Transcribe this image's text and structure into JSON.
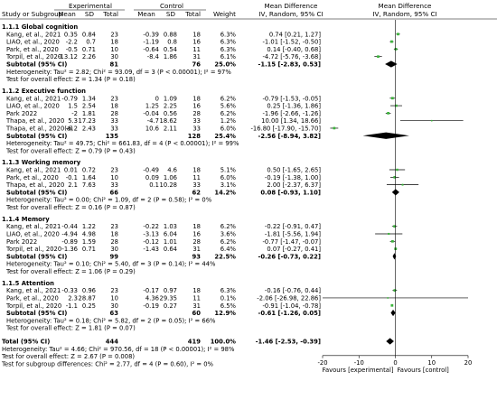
{
  "header": {
    "experimental": "Experimental",
    "control": "Control",
    "md_title": "Mean Difference",
    "md_sub": "IV, Random, 95% CI",
    "plot_title": "Mean Difference",
    "plot_sub": "IV, Random, 95% CI",
    "columns": [
      "Study or Subgroup",
      "Mean",
      "SD",
      "Total",
      "Mean",
      "SD",
      "Total",
      "Weight"
    ]
  },
  "chart_data": {
    "type": "forest",
    "xlim": [
      -20,
      20
    ],
    "ticks": [
      -20,
      -10,
      0,
      10,
      20
    ],
    "favours_left": "Favours [experimental]",
    "favours_right": "Favours [control]",
    "subgroups": [
      {
        "title": "1.1.1 Global cognition",
        "studies": [
          {
            "name": "Kang, et al., 2021",
            "e_mean": "0.35",
            "e_sd": "0.84",
            "e_n": "23",
            "c_mean": "-0.39",
            "c_sd": "0.88",
            "c_n": "18",
            "weight": "6.3%",
            "ci_text": "0.74 [0.21, 1.27]",
            "md": 0.74,
            "lo": 0.21,
            "hi": 1.27
          },
          {
            "name": "LIAO, et al., 2020",
            "e_mean": "-2.2",
            "e_sd": "0.7",
            "e_n": "18",
            "c_mean": "-1.19",
            "c_sd": "0.8",
            "c_n": "16",
            "weight": "6.3%",
            "ci_text": "-1.01 [-1.52, -0.50]",
            "md": -1.01,
            "lo": -1.52,
            "hi": -0.5
          },
          {
            "name": "Park, et al., 2020",
            "e_mean": "-0.5",
            "e_sd": "0.71",
            "e_n": "10",
            "c_mean": "-0.64",
            "c_sd": "0.54",
            "c_n": "11",
            "weight": "6.3%",
            "ci_text": "0.14 [-0.40, 0.68]",
            "md": 0.14,
            "lo": -0.4,
            "hi": 0.68
          },
          {
            "name": "Torpil, et al., 2020",
            "e_mean": "-13.12",
            "e_sd": "2.26",
            "e_n": "30",
            "c_mean": "-8.4",
            "c_sd": "1.86",
            "c_n": "31",
            "weight": "6.1%",
            "ci_text": "-4.72 [-5.76, -3.68]",
            "md": -4.72,
            "lo": -5.76,
            "hi": -3.68
          }
        ],
        "subtotal": {
          "label": "Subtotal (95% CI)",
          "e_n": "81",
          "c_n": "76",
          "weight": "25.0%",
          "ci_text": "-1.15 [-2.83, 0.53]",
          "md": -1.15,
          "lo": -2.83,
          "hi": 0.53
        },
        "heterogeneity": "Heterogeneity: Tau² = 2.82; Chi² = 93.09, df = 3 (P < 0.00001); I² = 97%",
        "overall": "Test for overall effect: Z = 1.34 (P = 0.18)"
      },
      {
        "title": "1.1.2 Executive function",
        "studies": [
          {
            "name": "Kang, et al., 2021",
            "e_mean": "-0.79",
            "e_sd": "1.34",
            "e_n": "23",
            "c_mean": "0",
            "c_sd": "1.09",
            "c_n": "18",
            "weight": "6.2%",
            "ci_text": "-0.79 [-1.53, -0.05]",
            "md": -0.79,
            "lo": -1.53,
            "hi": -0.05
          },
          {
            "name": "LIAO, et al., 2020",
            "e_mean": "1.5",
            "e_sd": "2.54",
            "e_n": "18",
            "c_mean": "1.25",
            "c_sd": "2.25",
            "c_n": "16",
            "weight": "5.6%",
            "ci_text": "0.25 [-1.36, 1.86]",
            "md": 0.25,
            "lo": -1.36,
            "hi": 1.86
          },
          {
            "name": "Park 2022",
            "e_mean": "-2",
            "e_sd": "1.81",
            "e_n": "28",
            "c_mean": "-0.04",
            "c_sd": "0.56",
            "c_n": "28",
            "weight": "6.2%",
            "ci_text": "-1.96 [-2.66, -1.26]",
            "md": -1.96,
            "lo": -2.66,
            "hi": -1.26
          },
          {
            "name": "Thapa, et al., 2020",
            "e_mean": "5.3",
            "e_sd": "17.23",
            "e_n": "33",
            "c_mean": "-4.7",
            "c_sd": "18.62",
            "c_n": "33",
            "weight": "1.2%",
            "ci_text": "10.00 [1.34, 18.66]",
            "md": 10.0,
            "lo": 1.34,
            "hi": 18.66
          },
          {
            "name": "Thapa, et al., 2020(a)",
            "e_mean": "-6.2",
            "e_sd": "2.43",
            "e_n": "33",
            "c_mean": "10.6",
            "c_sd": "2.11",
            "c_n": "33",
            "weight": "6.0%",
            "ci_text": "-16.80 [-17.90, -15.70]",
            "md": -16.8,
            "lo": -17.9,
            "hi": -15.7
          }
        ],
        "subtotal": {
          "label": "Subtotal (95% CI)",
          "e_n": "135",
          "c_n": "128",
          "weight": "25.4%",
          "ci_text": "-2.56 [-8.94, 3.82]",
          "md": -2.56,
          "lo": -8.94,
          "hi": 3.82
        },
        "heterogeneity": "Heterogeneity: Tau² = 49.75; Chi² = 661.83, df = 4 (P < 0.00001); I² = 99%",
        "overall": "Test for overall effect: Z = 0.79 (P = 0.43)"
      },
      {
        "title": "1.1.3 Working memory",
        "studies": [
          {
            "name": "Kang, et al., 2021",
            "e_mean": "0.01",
            "e_sd": "0.72",
            "e_n": "23",
            "c_mean": "-0.49",
            "c_sd": "4.6",
            "c_n": "18",
            "weight": "5.1%",
            "ci_text": "0.50 [-1.65, 2.65]",
            "md": 0.5,
            "lo": -1.65,
            "hi": 2.65
          },
          {
            "name": "Park, et al., 2020",
            "e_mean": "-0.1",
            "e_sd": "1.64",
            "e_n": "10",
            "c_mean": "0.09",
            "c_sd": "1.06",
            "c_n": "11",
            "weight": "6.0%",
            "ci_text": "-0.19 [-1.38, 1.00]",
            "md": -0.19,
            "lo": -1.38,
            "hi": 1.0
          },
          {
            "name": "Thapa, et al., 2020",
            "e_mean": "2.1",
            "e_sd": "7.63",
            "e_n": "33",
            "c_mean": "0.1",
            "c_sd": "10.28",
            "c_n": "33",
            "weight": "3.1%",
            "ci_text": "2.00 [-2.37, 6.37]",
            "md": 2.0,
            "lo": -2.37,
            "hi": 6.37
          }
        ],
        "subtotal": {
          "label": "Subtotal (95% CI)",
          "e_n": "66",
          "c_n": "62",
          "weight": "14.2%",
          "ci_text": "0.08 [-0.93, 1.10]",
          "md": 0.08,
          "lo": -0.93,
          "hi": 1.1
        },
        "heterogeneity": "Heterogeneity: Tau² = 0.00; Chi² = 1.09, df = 2 (P = 0.58); I² = 0%",
        "overall": "Test for overall effect: Z = 0.16 (P = 0.87)"
      },
      {
        "title": "1.1.4 Memory",
        "studies": [
          {
            "name": "Kang, et al., 2021",
            "e_mean": "-0.44",
            "e_sd": "1.22",
            "e_n": "23",
            "c_mean": "-0.22",
            "c_sd": "1.03",
            "c_n": "18",
            "weight": "6.2%",
            "ci_text": "-0.22 [-0.91, 0.47]",
            "md": -0.22,
            "lo": -0.91,
            "hi": 0.47
          },
          {
            "name": "LIAO, et al., 2020",
            "e_mean": "-4.94",
            "e_sd": "4.98",
            "e_n": "18",
            "c_mean": "-3.13",
            "c_sd": "6.04",
            "c_n": "16",
            "weight": "3.6%",
            "ci_text": "-1.81 [-5.56, 1.94]",
            "md": -1.81,
            "lo": -5.56,
            "hi": 1.94
          },
          {
            "name": "Park 2022",
            "e_mean": "-0.89",
            "e_sd": "1.59",
            "e_n": "28",
            "c_mean": "-0.12",
            "c_sd": "1.01",
            "c_n": "28",
            "weight": "6.2%",
            "ci_text": "-0.77 [-1.47, -0.07]",
            "md": -0.77,
            "lo": -1.47,
            "hi": -0.07
          },
          {
            "name": "Torpil, et al., 2020",
            "e_mean": "-1.36",
            "e_sd": "0.71",
            "e_n": "30",
            "c_mean": "-1.43",
            "c_sd": "0.64",
            "c_n": "31",
            "weight": "6.4%",
            "ci_text": "0.07 [-0.27, 0.41]",
            "md": 0.07,
            "lo": -0.27,
            "hi": 0.41
          }
        ],
        "subtotal": {
          "label": "Subtotal (95% CI)",
          "e_n": "99",
          "c_n": "93",
          "weight": "22.5%",
          "ci_text": "-0.26 [-0.73, 0.22]",
          "md": -0.26,
          "lo": -0.73,
          "hi": 0.22
        },
        "heterogeneity": "Heterogeneity: Tau² = 0.10; Chi² = 5.40, df = 3 (P = 0.14); I² = 44%",
        "overall": "Test for overall effect: Z = 1.06 (P = 0.29)"
      },
      {
        "title": "1.1.5 Attention",
        "studies": [
          {
            "name": "Kang, et al., 2021",
            "e_mean": "-0.33",
            "e_sd": "0.96",
            "e_n": "23",
            "c_mean": "-0.17",
            "c_sd": "0.97",
            "c_n": "18",
            "weight": "6.3%",
            "ci_text": "-0.16 [-0.76, 0.44]",
            "md": -0.16,
            "lo": -0.76,
            "hi": 0.44
          },
          {
            "name": "Park, et al., 2020",
            "e_mean": "2.3",
            "e_sd": "28.87",
            "e_n": "10",
            "c_mean": "4.36",
            "c_sd": "29.35",
            "c_n": "11",
            "weight": "0.1%",
            "ci_text": "-2.06 [-26.98, 22.86]",
            "md": -2.06,
            "lo": -26.98,
            "hi": 22.86
          },
          {
            "name": "Torpil, et al., 2020",
            "e_mean": "-1.1",
            "e_sd": "0.25",
            "e_n": "30",
            "c_mean": "-0.19",
            "c_sd": "0.27",
            "c_n": "31",
            "weight": "6.5%",
            "ci_text": "-0.91 [-1.04, -0.78]",
            "md": -0.91,
            "lo": -1.04,
            "hi": -0.78
          }
        ],
        "subtotal": {
          "label": "Subtotal (95% CI)",
          "e_n": "63",
          "c_n": "60",
          "weight": "12.9%",
          "ci_text": "-0.61 [-1.26, 0.05]",
          "md": -0.61,
          "lo": -1.26,
          "hi": 0.05
        },
        "heterogeneity": "Heterogeneity: Tau² = 0.18; Chi² = 5.82, df = 2 (P = 0.05); I² = 66%",
        "overall": "Test for overall effect: Z = 1.81 (P = 0.07)"
      }
    ],
    "total": {
      "label": "Total (95% CI)",
      "e_n": "444",
      "c_n": "419",
      "weight": "100.0%",
      "ci_text": "-1.46 [-2.53, -0.39]",
      "md": -1.46,
      "lo": -2.53,
      "hi": -0.39
    },
    "footer": [
      "Heterogeneity: Tau² = 4.66; Chi² = 970.56, df = 18 (P < 0.00001); I² = 98%",
      "Test for overall effect: Z = 2.67 (P = 0.008)",
      "Test for subgroup differences: Chi² = 2.77, df = 4 (P = 0.60), I² = 0%"
    ]
  },
  "colors": {
    "study_marker": "#3cb43c",
    "diamond": "#000000",
    "text": "#000000"
  }
}
